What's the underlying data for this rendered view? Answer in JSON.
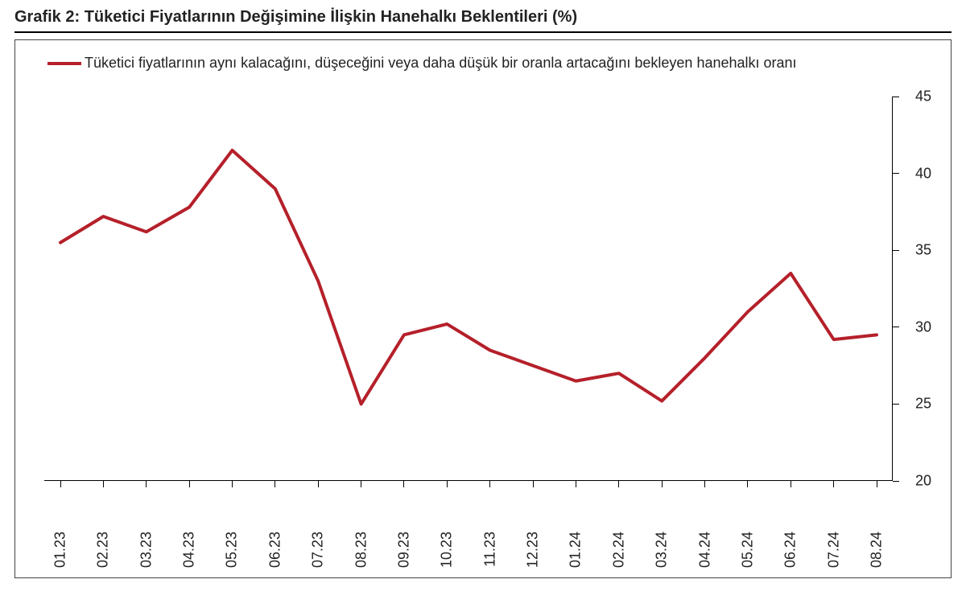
{
  "title": "Grafik 2: Tüketici Fiyatlarının Değişimine İlişkin Hanehalkı Beklentileri (%)",
  "chart": {
    "type": "line",
    "legend_label": "Tüketici fiyatlarının aynı kalacağını, düşeceğini veya daha düşük bir oranla artacağını bekleyen hanehalkı oranı",
    "line_color": "#b5202a",
    "line_width": 4,
    "background_color": "#ffffff",
    "border_color": "#444444",
    "axis_color": "#000000",
    "text_color": "#222222",
    "title_fontsize": 20,
    "label_fontsize": 18,
    "legend_fontsize": 18,
    "ylim": [
      20,
      45
    ],
    "ytick_step": 5,
    "y_ticks": [
      20,
      25,
      30,
      35,
      40,
      45
    ],
    "y_axis_side": "right",
    "x_labels": [
      "01.23",
      "02.23",
      "03.23",
      "04.23",
      "05.23",
      "06.23",
      "07.23",
      "08.23",
      "09.23",
      "10.23",
      "11.23",
      "12.23",
      "01.24",
      "02.24",
      "03.24",
      "04.24",
      "05.24",
      "06.24",
      "07.24",
      "08.24"
    ],
    "values": [
      35.5,
      37.2,
      36.2,
      37.8,
      41.5,
      39.0,
      33.0,
      25.0,
      29.5,
      30.2,
      28.5,
      27.5,
      26.5,
      27.0,
      25.2,
      28.0,
      31.0,
      33.5,
      29.2,
      29.5
    ]
  }
}
